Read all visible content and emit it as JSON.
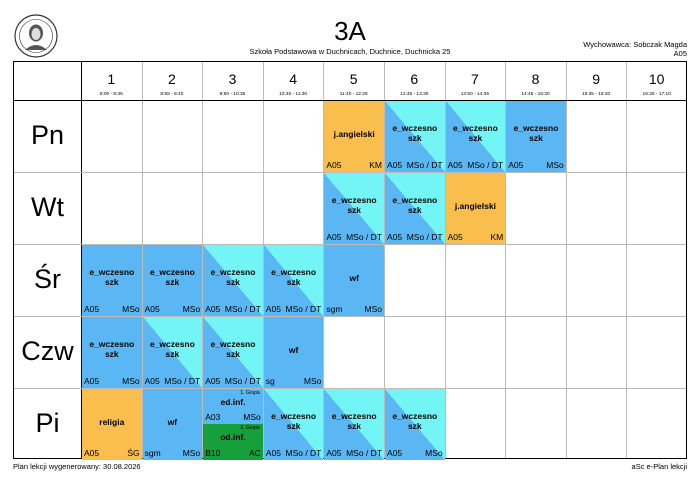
{
  "header": {
    "title": "3A",
    "school": "Szkoła Podstawowa w Duchnicach, Duchnice, Duchnicka 25",
    "teacher": "Wychowawca: Sobczak Magda",
    "room": "A05"
  },
  "periods": [
    {
      "num": "1",
      "time": "8:00 - 8:45"
    },
    {
      "num": "2",
      "time": "8:55 - 9:40"
    },
    {
      "num": "3",
      "time": "9:50 - 10:35"
    },
    {
      "num": "4",
      "time": "10:45 - 11:30"
    },
    {
      "num": "5",
      "time": "11:40 - 12:25"
    },
    {
      "num": "6",
      "time": "12:45 - 13:30"
    },
    {
      "num": "7",
      "time": "13:50 - 14:35"
    },
    {
      "num": "8",
      "time": "14:45 - 15:30"
    },
    {
      "num": "9",
      "time": "15:35 - 16:20"
    },
    {
      "num": "10",
      "time": "16:25 - 17:10"
    }
  ],
  "days": [
    "Pn",
    "Wt",
    "Śr",
    "Czw",
    "Pi"
  ],
  "lessons": [
    {
      "day": 0,
      "period": 4,
      "subject": "j.angielski",
      "room": "A05",
      "teacher": "KM",
      "color": "orange"
    },
    {
      "day": 0,
      "period": 5,
      "subject": "e_wczesno\nszk",
      "room": "A05",
      "teacher": "MSo / DT",
      "color": "split"
    },
    {
      "day": 0,
      "period": 6,
      "subject": "e_wczesno\nszk",
      "room": "A05",
      "teacher": "MSo / DT",
      "color": "split"
    },
    {
      "day": 0,
      "period": 7,
      "subject": "e_wczesno\nszk",
      "room": "A05",
      "teacher": "MSo",
      "color": "blue"
    },
    {
      "day": 1,
      "period": 4,
      "subject": "e_wczesno\nszk",
      "room": "A05",
      "teacher": "MSo / DT",
      "color": "split"
    },
    {
      "day": 1,
      "period": 5,
      "subject": "e_wczesno\nszk",
      "room": "A05",
      "teacher": "MSo / DT",
      "color": "split"
    },
    {
      "day": 1,
      "period": 6,
      "subject": "j.angielski",
      "room": "A05",
      "teacher": "KM",
      "color": "orange"
    },
    {
      "day": 2,
      "period": 0,
      "subject": "e_wczesno\nszk",
      "room": "A05",
      "teacher": "MSo",
      "color": "blue"
    },
    {
      "day": 2,
      "period": 1,
      "subject": "e_wczesno\nszk",
      "room": "A05",
      "teacher": "MSo",
      "color": "blue"
    },
    {
      "day": 2,
      "period": 2,
      "subject": "e_wczesno\nszk",
      "room": "A05",
      "teacher": "MSo / DT",
      "color": "split"
    },
    {
      "day": 2,
      "period": 3,
      "subject": "e_wczesno\nszk",
      "room": "A05",
      "teacher": "MSo / DT",
      "color": "split"
    },
    {
      "day": 2,
      "period": 4,
      "subject": "wf",
      "room": "sgm",
      "teacher": "MSo",
      "color": "blue"
    },
    {
      "day": 3,
      "period": 0,
      "subject": "e_wczesno\nszk",
      "room": "A05",
      "teacher": "MSo",
      "color": "blue"
    },
    {
      "day": 3,
      "period": 1,
      "subject": "e_wczesno\nszk",
      "room": "A05",
      "teacher": "MSo / DT",
      "color": "split"
    },
    {
      "day": 3,
      "period": 2,
      "subject": "e_wczesno\nszk",
      "room": "A05",
      "teacher": "MSo / DT",
      "color": "split"
    },
    {
      "day": 3,
      "period": 3,
      "subject": "wf",
      "room": "sg",
      "teacher": "MSo",
      "color": "blue"
    },
    {
      "day": 4,
      "period": 0,
      "subject": "religia",
      "room": "A05",
      "teacher": "ŚG",
      "color": "orange"
    },
    {
      "day": 4,
      "period": 1,
      "subject": "wf",
      "room": "sgm",
      "teacher": "MSo",
      "color": "blue"
    },
    {
      "day": 4,
      "period": 2,
      "subject": "ed.inf.",
      "room": "A03",
      "teacher": "MSo",
      "color": "blue",
      "half": "top",
      "group": "1. Grupa"
    },
    {
      "day": 4,
      "period": 2,
      "subject": "od.inf.",
      "room": "B10",
      "teacher": "AC",
      "color": "green",
      "half": "bottom",
      "group": "2. Grupa"
    },
    {
      "day": 4,
      "period": 3,
      "subject": "e_wczesno\nszk",
      "room": "A05",
      "teacher": "MSo / DT",
      "color": "split"
    },
    {
      "day": 4,
      "period": 4,
      "subject": "e_wczesno\nszk",
      "room": "A05",
      "teacher": "MSo / DT",
      "color": "split"
    },
    {
      "day": 4,
      "period": 5,
      "subject": "e_wczesno\nszk",
      "room": "A05",
      "teacher": "MSo",
      "color": "split"
    }
  ],
  "footer": {
    "generated": "Plan lekcji wygenerowany: 30.08.2026",
    "software": "aSc e-Plan lekcji"
  }
}
